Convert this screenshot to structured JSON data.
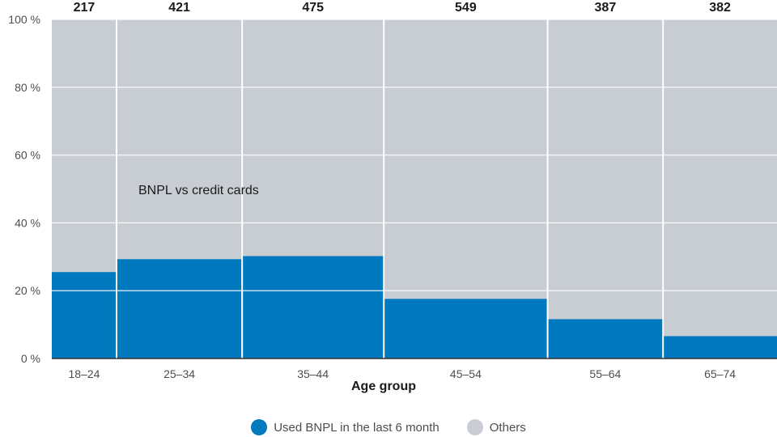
{
  "chart_data": {
    "type": "bar",
    "variant": "mosaic",
    "categories": [
      "18–24",
      "25–34",
      "35–44",
      "45–54",
      "55–64",
      "65–74"
    ],
    "counts": [
      217,
      421,
      475,
      549,
      387,
      382
    ],
    "series": [
      {
        "name": "Used BNPL in the last 6 month",
        "values": [
          25.5,
          29.3,
          30.2,
          17.6,
          11.6,
          6.6
        ],
        "color": "#0179bf"
      },
      {
        "name": "Others",
        "values": [
          74.5,
          70.7,
          69.8,
          82.4,
          88.4,
          93.4
        ],
        "color": "#c8cdd3"
      }
    ],
    "xlabel": "Age group",
    "ylabel": "",
    "ylim": [
      0,
      100
    ],
    "yticks": [
      "0 %",
      "20 %",
      "40 %",
      "60 %",
      "80 %",
      "100 %"
    ],
    "annotation": "BNPL vs credit cards",
    "grid": true,
    "legend_position": "bottom"
  }
}
